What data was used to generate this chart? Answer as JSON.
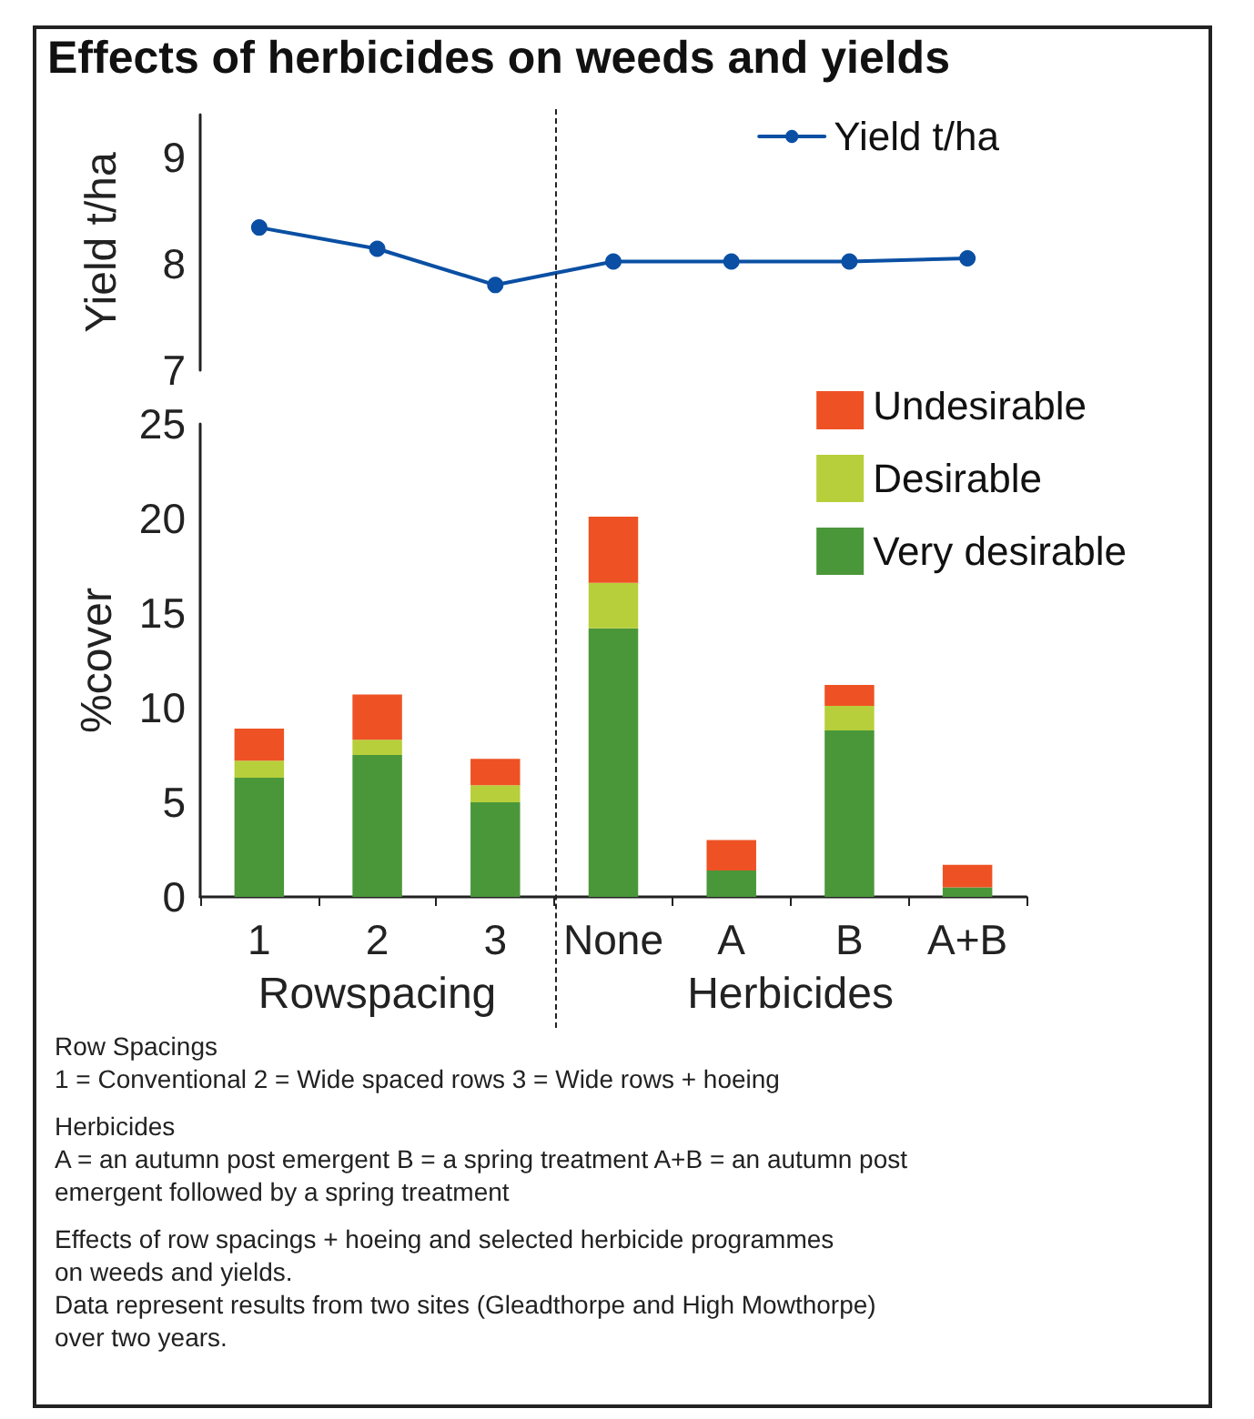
{
  "chart_data": [
    {
      "type": "line",
      "title": "Effects of herbicides on weeds and yields",
      "categories": [
        null,
        null,
        null,
        null,
        null,
        null,
        null
      ],
      "ylabel": "Yield t/ha",
      "ylim": [
        7,
        9.4
      ],
      "yticks": [
        7,
        8,
        9
      ],
      "tick_labels": "y",
      "legend": "top right",
      "marker": "circle",
      "line_style": "solid",
      "series": [
        {
          "name": "Yield t/ha",
          "color": "#0a4fa3",
          "values": [
            8.34,
            8.14,
            7.8,
            8.02,
            8.02,
            8.02,
            8.05
          ]
        }
      ]
    },
    {
      "type": "bar",
      "stacked": true,
      "categories": [
        "1",
        "2",
        "3",
        "None",
        "A",
        "B",
        "A+B"
      ],
      "ylabel": "%cover",
      "ylim": [
        0,
        25
      ],
      "yticks": [
        0,
        5,
        10,
        15,
        20,
        25
      ],
      "legend": "top right",
      "series": [
        {
          "name": "Very desirable",
          "color": "#4a973a",
          "values": [
            6.3,
            7.5,
            5.0,
            14.2,
            1.4,
            8.8,
            0.5
          ]
        },
        {
          "name": "Desirable",
          "color": "#b7cf3a",
          "values": [
            0.9,
            0.8,
            0.9,
            2.4,
            0,
            1.3,
            0
          ]
        },
        {
          "name": "Undesirable",
          "color": "#ee5224",
          "values": [
            1.7,
            2.4,
            1.4,
            3.5,
            1.6,
            1.1,
            1.2
          ]
        }
      ],
      "annotations": [
        "Rowspacing",
        "Herbicides",
        "Row Spacings",
        "1 = Conventional  2 = Wide spaced rows  3 = Wide rows + hoeing",
        "Herbicides",
        "A = an autumn post emergent  B = a spring treatment  A+B = an autumn post",
        "emergent followed by a spring treatment",
        "Effects of row spacings + hoeing and selected herbicide programmes",
        "on weeds and yields.",
        "Data represent results from two sites (Gleadthorpe and High Mowthorpe)",
        "over two years."
      ]
    }
  ]
}
